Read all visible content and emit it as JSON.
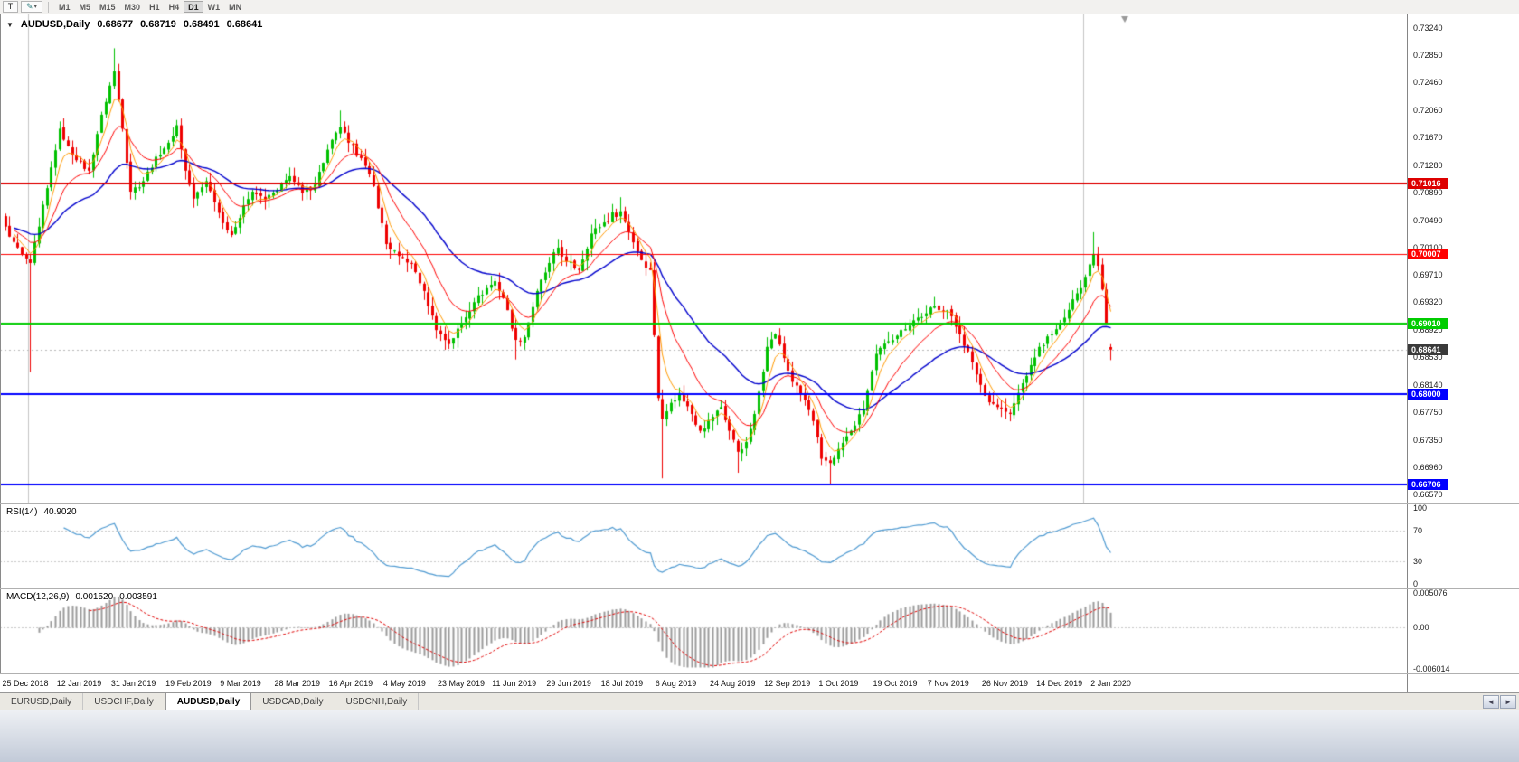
{
  "toolbar": {
    "chart_tool_label": "T",
    "timeframes": [
      "M1",
      "M5",
      "M15",
      "M30",
      "H1",
      "H4",
      "D1",
      "W1",
      "MN"
    ],
    "active_timeframe": "D1"
  },
  "icons": {
    "pencil": "✎",
    "dropdown_caret": "▾",
    "title_caret": "▼",
    "tab_scroll_left": "◄",
    "tab_scroll_right": "►"
  },
  "chart": {
    "symbol": "AUDUSD",
    "timeframe": "Daily",
    "title": "AUDUSD,Daily",
    "ohlc": {
      "open": "0.68677",
      "high": "0.68719",
      "low": "0.68491",
      "close": "0.68641"
    },
    "price_axis": {
      "max": 0.7324,
      "min": 0.6657,
      "ticks": [
        "0.73240",
        "0.72850",
        "0.72460",
        "0.72060",
        "0.71670",
        "0.71280",
        "0.70890",
        "0.70490",
        "0.70100",
        "0.69710",
        "0.69320",
        "0.68920",
        "0.68530",
        "0.68140",
        "0.67750",
        "0.67350",
        "0.66960",
        "0.66570"
      ]
    },
    "time_axis": [
      "25 Dec 2018",
      "12 Jan 2019",
      "31 Jan 2019",
      "19 Feb 2019",
      "9 Mar 2019",
      "28 Mar 2019",
      "16 Apr 2019",
      "4 May 2019",
      "23 May 2019",
      "11 Jun 2019",
      "29 Jun 2019",
      "18 Jul 2019",
      "6 Aug 2019",
      "24 Aug 2019",
      "12 Sep 2019",
      "1 Oct 2019",
      "19 Oct 2019",
      "7 Nov 2019",
      "26 Nov 2019",
      "14 Dec 2019",
      "2 Jan 2020"
    ],
    "levels": [
      {
        "price": 0.71016,
        "label": "0.71016",
        "color": "#dd0000",
        "text": "#ffffff",
        "width": 2
      },
      {
        "price": 0.70007,
        "label": "0.70007",
        "color": "#ff0000",
        "text": "#ffffff",
        "width": 1
      },
      {
        "price": 0.6901,
        "label": "0.69010",
        "color": "#00cc00",
        "text": "#ffffff",
        "width": 2
      },
      {
        "price": 0.68,
        "label": "0.68000",
        "color": "#0000ff",
        "text": "#ffffff",
        "width": 2
      },
      {
        "price": 0.66706,
        "label": "0.66706",
        "color": "#0000ff",
        "text": "#ffffff",
        "width": 2
      }
    ],
    "current_price": {
      "value": 0.68641,
      "label": "0.68641",
      "bg": "#3a3a3a",
      "text": "#ffffff"
    }
  },
  "indicators": {
    "rsi": {
      "label": "RSI(14)",
      "value": "40.9020",
      "axis": [
        "100",
        "70",
        "30",
        "0"
      ],
      "levels": [
        70,
        30
      ],
      "range": [
        0,
        100
      ],
      "color": "#4f9ad1"
    },
    "macd": {
      "label": "MACD(12,26,9)",
      "value_main": "0.001520",
      "value_signal": "0.003591",
      "axis_top": "0.005076",
      "axis_zero": "0.00",
      "axis_bottom": "-0.006014",
      "max": 0.005076,
      "min": -0.006014
    }
  },
  "tabs": [
    "EURUSD,Daily",
    "USDCHF,Daily",
    "AUDUSD,Daily",
    "USDCAD,Daily",
    "USDCNH,Daily"
  ],
  "active_tab": "AUDUSD,Daily",
  "chart_data": {
    "type": "candlestick",
    "symbol": "AUDUSD",
    "period": "Daily",
    "candle_count": 265,
    "colors": {
      "up": "#00c000",
      "down": "#ee0000",
      "ma_fast": "#ff9900",
      "ma_mid": "#ff0000",
      "ma_slow": "#0000cc"
    },
    "ma_periods": {
      "fast": 5,
      "mid": 13,
      "slow": 34
    },
    "period_separators": [
      6,
      258
    ],
    "close_anchors": [
      [
        0,
        0.704
      ],
      [
        2,
        0.7018
      ],
      [
        4,
        0.7
      ],
      [
        6,
        0.6988
      ],
      [
        8,
        0.704
      ],
      [
        10,
        0.7095
      ],
      [
        13,
        0.718
      ],
      [
        15,
        0.7155
      ],
      [
        17,
        0.7135
      ],
      [
        20,
        0.712
      ],
      [
        23,
        0.72
      ],
      [
        26,
        0.7262
      ],
      [
        28,
        0.718
      ],
      [
        30,
        0.709
      ],
      [
        33,
        0.7105
      ],
      [
        36,
        0.714
      ],
      [
        39,
        0.716
      ],
      [
        41,
        0.7185
      ],
      [
        43,
        0.712
      ],
      [
        45,
        0.708
      ],
      [
        48,
        0.7105
      ],
      [
        50,
        0.7075
      ],
      [
        52,
        0.7045
      ],
      [
        54,
        0.7028
      ],
      [
        57,
        0.707
      ],
      [
        59,
        0.709
      ],
      [
        62,
        0.7078
      ],
      [
        65,
        0.7092
      ],
      [
        68,
        0.7112
      ],
      [
        71,
        0.7088
      ],
      [
        74,
        0.71
      ],
      [
        77,
        0.715
      ],
      [
        80,
        0.7182
      ],
      [
        82,
        0.716
      ],
      [
        85,
        0.7138
      ],
      [
        88,
        0.7098
      ],
      [
        91,
        0.7015
      ],
      [
        94,
        0.6998
      ],
      [
        97,
        0.6988
      ],
      [
        100,
        0.6948
      ],
      [
        103,
        0.6892
      ],
      [
        106,
        0.6872
      ],
      [
        109,
        0.6902
      ],
      [
        112,
        0.6932
      ],
      [
        115,
        0.6952
      ],
      [
        117,
        0.6962
      ],
      [
        119,
        0.6938
      ],
      [
        122,
        0.6878
      ],
      [
        124,
        0.6882
      ],
      [
        127,
        0.6948
      ],
      [
        130,
        0.6988
      ],
      [
        132,
        0.701
      ],
      [
        134,
        0.699
      ],
      [
        137,
        0.6978
      ],
      [
        140,
        0.703
      ],
      [
        143,
        0.7046
      ],
      [
        147,
        0.7062
      ],
      [
        149,
        0.7032
      ],
      [
        152,
        0.6992
      ],
      [
        154,
        0.6978
      ],
      [
        156,
        0.6795
      ],
      [
        157,
        0.6765
      ],
      [
        159,
        0.6788
      ],
      [
        161,
        0.6802
      ],
      [
        164,
        0.6772
      ],
      [
        166,
        0.6748
      ],
      [
        169,
        0.6768
      ],
      [
        171,
        0.6782
      ],
      [
        173,
        0.6748
      ],
      [
        175,
        0.6718
      ],
      [
        177,
        0.6732
      ],
      [
        179,
        0.6772
      ],
      [
        182,
        0.6868
      ],
      [
        184,
        0.6886
      ],
      [
        186,
        0.6852
      ],
      [
        188,
        0.6818
      ],
      [
        191,
        0.6792
      ],
      [
        193,
        0.6762
      ],
      [
        195,
        0.6708
      ],
      [
        197,
        0.6702
      ],
      [
        199,
        0.6722
      ],
      [
        202,
        0.6748
      ],
      [
        205,
        0.6778
      ],
      [
        208,
        0.6858
      ],
      [
        211,
        0.6876
      ],
      [
        214,
        0.6892
      ],
      [
        217,
        0.6906
      ],
      [
        220,
        0.6916
      ],
      [
        222,
        0.6926
      ],
      [
        225,
        0.692
      ],
      [
        228,
        0.6886
      ],
      [
        231,
        0.6846
      ],
      [
        234,
        0.6798
      ],
      [
        237,
        0.6782
      ],
      [
        240,
        0.6772
      ],
      [
        243,
        0.6816
      ],
      [
        245,
        0.6842
      ],
      [
        247,
        0.6868
      ],
      [
        250,
        0.6886
      ],
      [
        252,
        0.6902
      ],
      [
        255,
        0.6936
      ],
      [
        257,
        0.6952
      ],
      [
        259,
        0.6986
      ],
      [
        260,
        0.7001
      ],
      [
        261,
        0.6984
      ],
      [
        262,
        0.695
      ],
      [
        263,
        0.6902
      ],
      [
        264,
        0.68641
      ]
    ],
    "specials": {
      "6": {
        "low": 0.6832
      },
      "26": {
        "high": 0.7295
      },
      "80": {
        "high": 0.7206
      },
      "106": {
        "low": 0.6865
      },
      "122": {
        "low": 0.685
      },
      "147": {
        "high": 0.7082
      },
      "157": {
        "low": 0.668
      },
      "175": {
        "low": 0.6688
      },
      "197": {
        "low": 0.66706
      },
      "260": {
        "high": 0.7032
      },
      "264": {
        "open": 0.68677,
        "high": 0.68719,
        "low": 0.68491,
        "close": 0.68641
      }
    }
  }
}
